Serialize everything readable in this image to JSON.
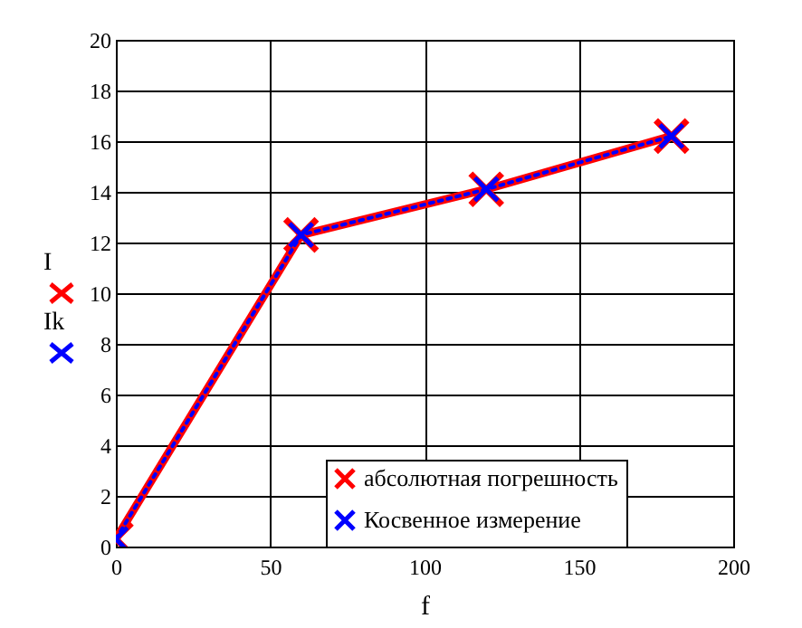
{
  "chart_data": {
    "type": "line",
    "xlabel": "f",
    "annotations": [
      "I",
      "Ik"
    ],
    "x": [
      0,
      60,
      120,
      180
    ],
    "series": [
      {
        "name": "абсолютная погрешность",
        "color": "#ff0000",
        "line_style": "solid",
        "values": [
          0.3,
          12.3,
          14.1,
          16.2
        ]
      },
      {
        "name": "Косвенное измерение",
        "color": "#0000ff",
        "line_style": "dotted",
        "values": [
          0.3,
          12.3,
          14.1,
          16.2
        ]
      }
    ],
    "marker": "cross",
    "xlim": [
      0,
      200
    ],
    "xticks": [
      0,
      50,
      100,
      150,
      200
    ],
    "ylim": [
      0,
      20
    ],
    "yticks": [
      0,
      2,
      4,
      6,
      8,
      10,
      12,
      14,
      16,
      18,
      20
    ],
    "grid": true,
    "legend": "bottom right"
  }
}
